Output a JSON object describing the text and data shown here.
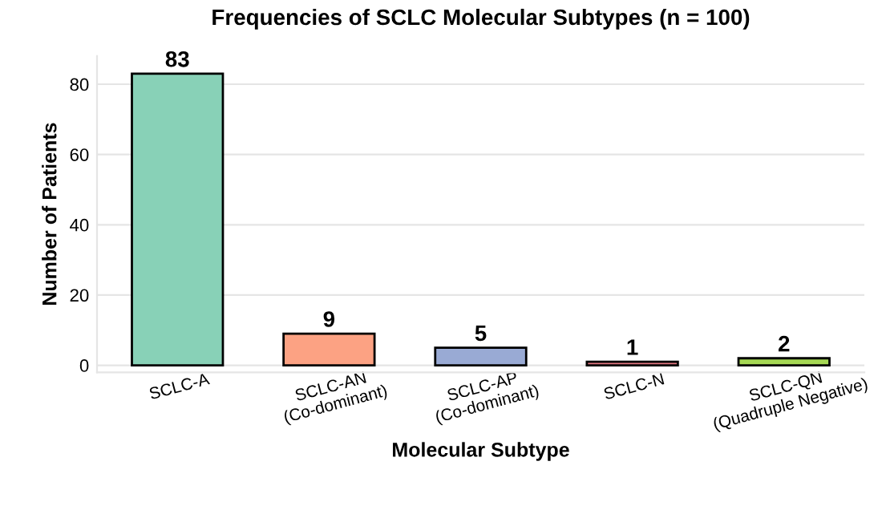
{
  "chart_data": {
    "type": "bar",
    "title": "Frequencies of SCLC Molecular Subtypes (n = 100)",
    "xlabel": "Molecular Subtype",
    "ylabel": "Number of Patients",
    "categories": [
      "SCLC-A",
      "SCLC-AN\n(Co-dominant)",
      "SCLC-AP\n(Co-dominant)",
      "SCLC-N",
      "SCLC-QN\n(Quadruple Negative)"
    ],
    "values": [
      83,
      9,
      5,
      1,
      2
    ],
    "colors": [
      "#88d1b7",
      "#fca283",
      "#99aad4",
      "#e27680",
      "#a6d854"
    ],
    "ylim": [
      -2,
      88
    ],
    "yticks": [
      0,
      20,
      40,
      60,
      80
    ],
    "grid": "y",
    "data_labels": true
  }
}
